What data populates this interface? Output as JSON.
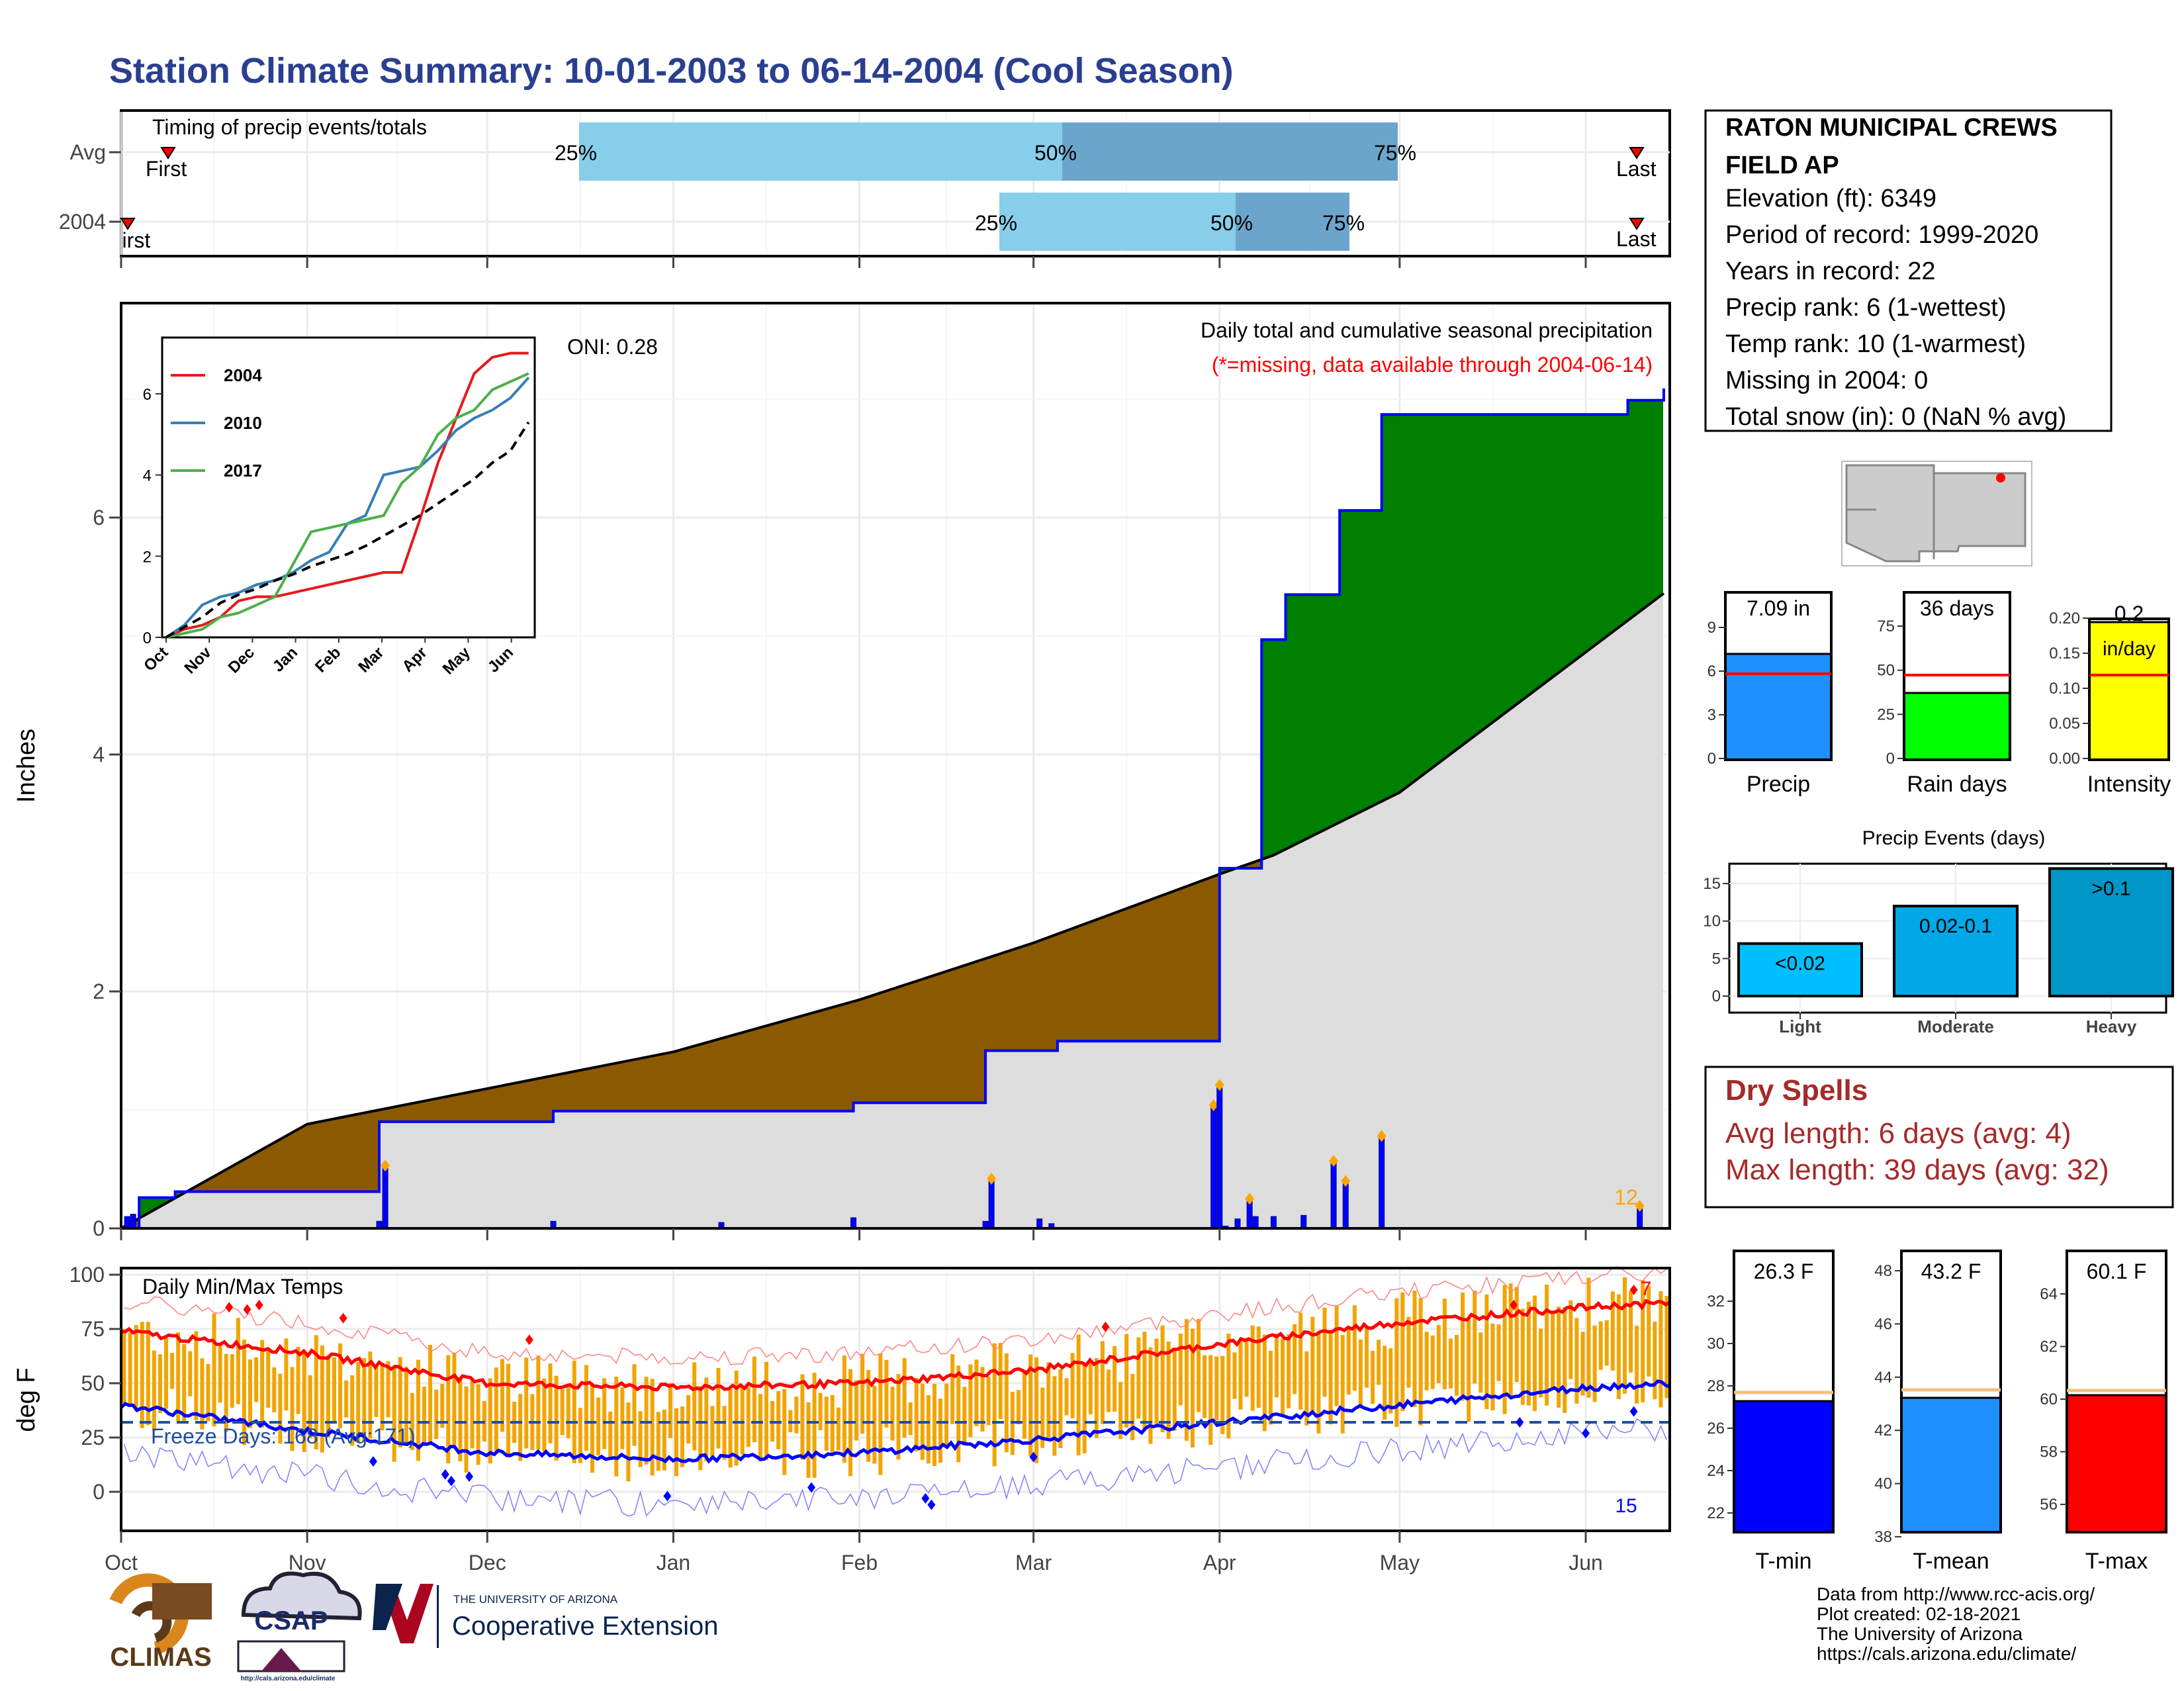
{
  "title": "Station Climate Summary: 10-01-2003 to 06-14-2004 (Cool Season)",
  "colors": {
    "title": "#2a3f8f",
    "q_light": "#87ceeb",
    "q_mid": "#6ca5cc",
    "above": "#008000",
    "below": "#8b5a00",
    "shade": "#dddddd",
    "bar": "#0000ff",
    "marker": "#ffa500",
    "red": "#ff0000",
    "tmax_band": "#f0a500",
    "dry_title": "#a52a2a"
  },
  "months": [
    "Oct",
    "Nov",
    "Dec",
    "Jan",
    "Feb",
    "Mar",
    "Apr",
    "May",
    "Jun"
  ],
  "timing": {
    "title": "Timing of precip events/totals",
    "rows": [
      {
        "label": "Avg",
        "first": "First",
        "last": "Last",
        "p25": "25%",
        "p50": "50%",
        "p75": "75%"
      },
      {
        "label": "2004",
        "first": "First",
        "last": "Last",
        "p25": "25%",
        "p50": "50%",
        "p75": "75%"
      }
    ]
  },
  "main": {
    "ylabel": "Inches",
    "yticks": [
      "0",
      "2",
      "4",
      "6"
    ],
    "oni": "ONI: 0.28",
    "legend_line1": "Daily total and cumulative seasonal precipitation",
    "legend_line2": "(*=missing, data available through 2004-06-14)",
    "count_label": "12"
  },
  "inset": {
    "legend": [
      "2004",
      "2010",
      "2017"
    ],
    "yticks": [
      "0",
      "2",
      "4",
      "6"
    ],
    "months": [
      "Oct",
      "Nov",
      "Dec",
      "Jan",
      "Feb",
      "Mar",
      "Apr",
      "May",
      "Jun"
    ]
  },
  "temp": {
    "title": "Daily Min/Max Temps",
    "ylabel": "deg F",
    "yticks": [
      "100",
      "75",
      "50",
      "25",
      "0"
    ],
    "freeze": "Freeze Days: 168 (Avg:171)",
    "high_count": "7",
    "low_count": "15"
  },
  "station": {
    "name1": "RATON MUNICIPAL CREWS",
    "name2": "FIELD AP",
    "elevation": "Elevation (ft): 6349",
    "period": "Period of record: 1999-2020",
    "years": "Years in record: 22",
    "precip_rank": "Precip rank: 6 (1-wettest)",
    "temp_rank": "Temp rank: 10 (1-warmest)",
    "missing": "Missing in 2004: 0",
    "snow": "Total snow (in): 0 (NaN % avg)"
  },
  "mini_precip": {
    "value": "7.09 in",
    "label": "Precip",
    "yticks": [
      "0",
      "3",
      "6",
      "9"
    ]
  },
  "mini_raindays": {
    "value": "36 days",
    "label": "Rain days",
    "yticks": [
      "0",
      "25",
      "50",
      "75"
    ]
  },
  "mini_intensity": {
    "value": "0.2",
    "unit": "in/day",
    "label": "Intensity",
    "yticks": [
      "0.00",
      "0.05",
      "0.10",
      "0.15",
      "0.20"
    ]
  },
  "events": {
    "title": "Precip Events (days)",
    "yticks": [
      "0",
      "5",
      "10",
      "15"
    ],
    "categories": [
      "Light",
      "Moderate",
      "Heavy"
    ],
    "bar_labels": [
      "<0.02",
      "0.02-0.1",
      ">0.1"
    ]
  },
  "dry": {
    "title": "Dry Spells",
    "avg": "Avg length: 6 days (avg: 4)",
    "max": "Max length: 39 days (avg: 32)"
  },
  "mini_tmin": {
    "value": "26.3 F",
    "label": "T-min",
    "yticks": [
      "22",
      "24",
      "26",
      "28",
      "30",
      "32"
    ]
  },
  "mini_tmean": {
    "value": "43.2 F",
    "label": "T-mean",
    "yticks": [
      "38",
      "40",
      "42",
      "44",
      "46",
      "48"
    ]
  },
  "mini_tmax": {
    "value": "60.1 F",
    "label": "T-max",
    "yticks": [
      "56",
      "58",
      "60",
      "62",
      "64"
    ]
  },
  "credits": {
    "line1": "Data from http://www.rcc-acis.org/",
    "line2": "Plot created: 02-18-2021",
    "line3": "The University of Arizona",
    "line4": "https://cals.arizona.edu/climate/"
  },
  "logos": {
    "climas": "CLIMAS",
    "csap": "CSAP",
    "csap_url": "http://cals.arizona.edu/climate",
    "ua_small": "THE UNIVERSITY OF ARIZONA",
    "ua_ext": "Cooperative Extension"
  },
  "chart_data": [
    {
      "type": "bar",
      "title": "Timing of precip events/totals",
      "series": [
        {
          "name": "Avg",
          "p25_date": "2003-12-16",
          "p50_date": "2004-03-05",
          "p75_date": "2004-04-29",
          "first": "2003-10-08",
          "last": "2004-06-10"
        },
        {
          "name": "2004",
          "p25_date": "2004-02-23",
          "p50_date": "2004-04-02",
          "p75_date": "2004-04-21",
          "first": "2003-10-01",
          "last": "2004-06-10"
        }
      ]
    },
    {
      "type": "area",
      "title": "Daily total and cumulative seasonal precipitation",
      "ylabel": "Inches",
      "ylim": [
        0,
        7.6
      ],
      "series": [
        {
          "name": "2004 cumulative",
          "x": [
            "2003-10-01",
            "2003-10-04",
            "2003-10-10",
            "2003-11-13",
            "2003-12-12",
            "2004-01-31",
            "2004-02-22",
            "2004-03-05",
            "2004-03-31",
            "2004-04-01",
            "2004-04-08",
            "2004-04-12",
            "2004-04-21",
            "2004-04-28",
            "2004-06-08",
            "2004-06-14"
          ],
          "values": [
            0.0,
            0.26,
            0.31,
            0.9,
            0.99,
            1.06,
            1.5,
            1.58,
            1.58,
            3.04,
            4.97,
            5.35,
            6.06,
            6.87,
            6.99,
            7.09
          ]
        },
        {
          "name": "Avg cumulative",
          "x": [
            "2003-10-01",
            "2003-11-01",
            "2003-12-01",
            "2004-01-01",
            "2004-02-01",
            "2004-03-01",
            "2004-04-01",
            "2004-04-10",
            "2004-05-01",
            "2004-06-14"
          ],
          "values": [
            0.0,
            0.88,
            1.18,
            1.49,
            1.93,
            2.41,
            2.99,
            3.15,
            3.68,
            5.36
          ]
        }
      ],
      "daily": {
        "x": [
          "2003-10-02",
          "2003-10-03",
          "2003-11-13",
          "2003-11-14",
          "2003-12-12",
          "2004-01-09",
          "2004-01-31",
          "2004-02-22",
          "2004-02-23",
          "2004-03-02",
          "2004-03-04",
          "2004-03-31",
          "2004-04-01",
          "2004-04-02",
          "2004-04-04",
          "2004-04-06",
          "2004-04-07",
          "2004-04-10",
          "2004-04-15",
          "2004-04-20",
          "2004-04-22",
          "2004-04-28",
          "2004-06-10"
        ],
        "values": [
          0.1,
          0.12,
          0.06,
          0.53,
          0.06,
          0.05,
          0.09,
          0.06,
          0.42,
          0.08,
          0.04,
          1.04,
          1.21,
          0.02,
          0.08,
          0.25,
          0.1,
          0.1,
          0.11,
          0.57,
          0.4,
          0.78,
          0.19
        ]
      },
      "oni": 0.28
    },
    {
      "type": "line",
      "title": "Daily Min/Max Temps",
      "ylabel": "deg F",
      "ylim": [
        -20,
        100
      ],
      "series": [
        {
          "name": "avg max",
          "x": [
            "Oct",
            "Nov",
            "Dec",
            "Jan",
            "Feb",
            "Mar",
            "Apr",
            "May",
            "Jun"
          ],
          "values": [
            74,
            64,
            50,
            48,
            50,
            56,
            68,
            78,
            85
          ]
        },
        {
          "name": "avg min",
          "x": [
            "Oct",
            "Nov",
            "Dec",
            "Jan",
            "Feb",
            "Mar",
            "Apr",
            "May",
            "Jun"
          ],
          "values": [
            40,
            28,
            18,
            15,
            18,
            24,
            32,
            40,
            48
          ]
        },
        {
          "name": "freeze threshold",
          "x": [
            "Oct",
            "Jun"
          ],
          "values": [
            32,
            32
          ]
        }
      ],
      "freeze_days": 168,
      "freeze_days_avg": 171
    },
    {
      "type": "bar",
      "title": "Precip Events (days)",
      "categories": [
        "Light",
        "Moderate",
        "Heavy"
      ],
      "values": [
        7,
        12,
        17
      ]
    }
  ]
}
